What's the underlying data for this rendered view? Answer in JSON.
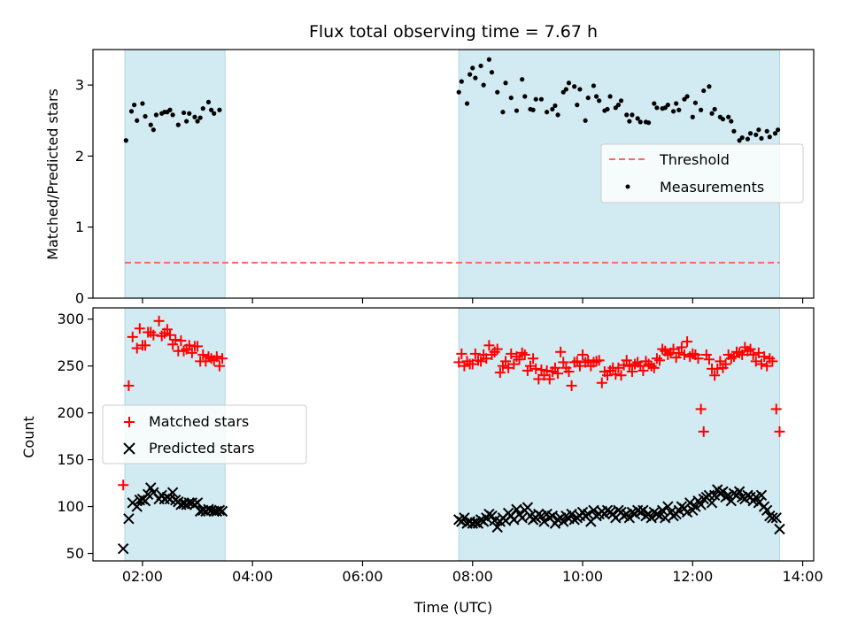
{
  "colors": {
    "band": "#add8e6",
    "matched": "#ff0000",
    "predicted": "#000000",
    "threshold": "#ff6666",
    "measurements": "#000000"
  },
  "chart_data": [
    {
      "type": "scatter",
      "title": "Flux total observing time = 7.67 h",
      "xlabel": "",
      "ylabel": "Matched/Predicted stars",
      "xlim": [
        1.1,
        14.2
      ],
      "ylim": [
        0,
        3.5
      ],
      "yticks": [
        0,
        1,
        2,
        3
      ],
      "ytick_labels": [
        "0",
        "1",
        "2",
        "3"
      ],
      "shaded_intervals": [
        [
          1.68,
          3.5
        ],
        [
          7.75,
          13.58
        ]
      ],
      "legend": {
        "placement": "right",
        "entries": [
          "Threshold",
          "Measurements"
        ]
      },
      "series": [
        {
          "name": "Threshold",
          "kind": "dashed-line",
          "x": [
            1.68,
            13.58
          ],
          "y": [
            0.5,
            0.5
          ]
        },
        {
          "name": "Measurements",
          "kind": "points",
          "x": [
            1.7,
            1.8,
            1.85,
            1.9,
            2.0,
            2.05,
            2.15,
            2.2,
            2.25,
            2.35,
            2.4,
            2.45,
            2.5,
            2.55,
            2.65,
            2.75,
            2.8,
            2.85,
            2.95,
            3.0,
            3.05,
            3.1,
            3.2,
            3.25,
            3.3,
            3.4,
            7.75,
            7.8,
            7.9,
            7.95,
            8.0,
            8.05,
            8.15,
            8.2,
            8.3,
            8.35,
            8.45,
            8.55,
            8.6,
            8.7,
            8.8,
            8.9,
            8.95,
            9.05,
            9.1,
            9.15,
            9.25,
            9.35,
            9.45,
            9.5,
            9.55,
            9.65,
            9.7,
            9.75,
            9.85,
            9.9,
            9.95,
            10.05,
            10.1,
            10.2,
            10.25,
            10.3,
            10.4,
            10.45,
            10.5,
            10.6,
            10.65,
            10.7,
            10.8,
            10.85,
            10.9,
            11.0,
            11.05,
            11.15,
            11.2,
            11.3,
            11.35,
            11.45,
            11.5,
            11.55,
            11.65,
            11.7,
            11.75,
            11.85,
            11.9,
            12.0,
            12.05,
            12.15,
            12.2,
            12.3,
            12.35,
            12.4,
            12.5,
            12.55,
            12.65,
            12.7,
            12.75,
            12.85,
            12.9,
            13.0,
            13.05,
            13.15,
            13.2,
            13.25,
            13.35,
            13.4,
            13.5,
            13.55
          ],
          "y": [
            2.22,
            2.63,
            2.72,
            2.5,
            2.74,
            2.56,
            2.44,
            2.37,
            2.58,
            2.6,
            2.62,
            2.62,
            2.65,
            2.58,
            2.44,
            2.61,
            2.49,
            2.6,
            2.55,
            2.49,
            2.54,
            2.67,
            2.76,
            2.65,
            2.6,
            2.65,
            2.9,
            3.05,
            2.74,
            3.15,
            3.24,
            3.1,
            3.27,
            3.0,
            3.36,
            3.18,
            2.9,
            2.62,
            3.03,
            2.82,
            2.64,
            3.08,
            2.84,
            2.66,
            2.65,
            2.8,
            2.8,
            2.62,
            2.66,
            2.71,
            2.58,
            2.9,
            2.94,
            3.03,
            2.98,
            2.72,
            2.94,
            2.5,
            2.82,
            2.99,
            2.84,
            2.78,
            2.64,
            2.66,
            2.84,
            2.68,
            2.72,
            2.78,
            2.58,
            2.49,
            2.58,
            2.53,
            2.48,
            2.48,
            2.47,
            2.74,
            2.68,
            2.67,
            2.68,
            2.72,
            2.63,
            2.74,
            2.65,
            2.8,
            2.84,
            2.55,
            2.75,
            2.65,
            2.92,
            2.98,
            2.6,
            2.66,
            2.55,
            2.52,
            2.55,
            2.49,
            2.35,
            2.22,
            2.26,
            2.24,
            2.32,
            2.3,
            2.37,
            2.25,
            2.35,
            2.27,
            2.32,
            2.37
          ]
        }
      ]
    },
    {
      "type": "scatter",
      "title": "",
      "xlabel": "Time (UTC)",
      "ylabel": "Count",
      "xlim": [
        1.1,
        14.2
      ],
      "ylim": [
        42,
        312
      ],
      "yticks": [
        50,
        100,
        150,
        200,
        250,
        300
      ],
      "ytick_labels": [
        "50",
        "100",
        "150",
        "200",
        "250",
        "300"
      ],
      "xticks": [
        2,
        4,
        6,
        8,
        10,
        12,
        14
      ],
      "xtick_labels": [
        "02:00",
        "04:00",
        "06:00",
        "08:00",
        "10:00",
        "12:00",
        "14:00"
      ],
      "shaded_intervals": [
        [
          1.68,
          3.5
        ],
        [
          7.75,
          13.58
        ]
      ],
      "legend": {
        "placement": "left",
        "entries": [
          "Matched stars",
          "Predicted stars"
        ]
      },
      "series": [
        {
          "name": "Matched stars",
          "marker": "+",
          "x": [
            1.65,
            1.75,
            1.82,
            1.9,
            1.95,
            2.0,
            2.05,
            2.1,
            2.15,
            2.2,
            2.3,
            2.35,
            2.4,
            2.45,
            2.5,
            2.55,
            2.6,
            2.65,
            2.7,
            2.75,
            2.8,
            2.85,
            2.9,
            2.95,
            3.0,
            3.05,
            3.1,
            3.15,
            3.2,
            3.25,
            3.3,
            3.35,
            3.4,
            3.45,
            7.75,
            7.8,
            7.85,
            7.9,
            7.95,
            8.0,
            8.05,
            8.1,
            8.15,
            8.2,
            8.25,
            8.3,
            8.35,
            8.4,
            8.45,
            8.5,
            8.55,
            8.6,
            8.65,
            8.7,
            8.75,
            8.8,
            8.85,
            8.9,
            8.95,
            9.0,
            9.05,
            9.1,
            9.15,
            9.2,
            9.25,
            9.3,
            9.35,
            9.4,
            9.45,
            9.5,
            9.55,
            9.6,
            9.65,
            9.7,
            9.75,
            9.8,
            9.85,
            9.9,
            9.95,
            10.0,
            10.05,
            10.1,
            10.15,
            10.2,
            10.25,
            10.3,
            10.35,
            10.4,
            10.45,
            10.5,
            10.55,
            10.6,
            10.65,
            10.7,
            10.75,
            10.8,
            10.85,
            10.9,
            10.95,
            11.0,
            11.05,
            11.1,
            11.15,
            11.2,
            11.25,
            11.3,
            11.35,
            11.4,
            11.45,
            11.5,
            11.55,
            11.6,
            11.65,
            11.7,
            11.75,
            11.8,
            11.85,
            11.9,
            11.95,
            12.0,
            12.05,
            12.1,
            12.15,
            12.2,
            12.25,
            12.3,
            12.35,
            12.4,
            12.45,
            12.5,
            12.55,
            12.6,
            12.65,
            12.7,
            12.75,
            12.8,
            12.85,
            12.9,
            12.95,
            13.0,
            13.05,
            13.1,
            13.15,
            13.2,
            13.25,
            13.3,
            13.35,
            13.4,
            13.45,
            13.52,
            13.58
          ],
          "y": [
            123,
            229,
            281,
            269,
            290,
            272,
            272,
            286,
            286,
            283,
            298,
            282,
            285,
            289,
            283,
            273,
            278,
            266,
            277,
            266,
            268,
            272,
            264,
            271,
            271,
            255,
            262,
            255,
            260,
            258,
            256,
            260,
            250,
            258,
            254,
            263,
            250,
            255,
            252,
            252,
            263,
            256,
            255,
            262,
            258,
            272,
            262,
            265,
            268,
            243,
            250,
            255,
            248,
            263,
            252,
            260,
            257,
            264,
            262,
            245,
            250,
            258,
            247,
            236,
            246,
            240,
            245,
            236,
            244,
            248,
            242,
            265,
            254,
            248,
            244,
            229,
            254,
            255,
            250,
            262,
            254,
            256,
            250,
            254,
            255,
            256,
            232,
            244,
            240,
            245,
            248,
            241,
            248,
            240,
            251,
            256,
            250,
            244,
            252,
            254,
            250,
            245,
            255,
            252,
            250,
            248,
            258,
            256,
            268,
            266,
            262,
            264,
            268,
            259,
            264,
            270,
            262,
            276,
            260,
            263,
            262,
            258,
            204,
            180,
            262,
            257,
            247,
            240,
            247,
            255,
            248,
            252,
            262,
            258,
            260,
            265,
            264,
            262,
            270,
            266,
            268,
            262,
            255,
            264,
            252,
            260,
            250,
            258,
            255,
            204,
            180
          ]
        },
        {
          "name": "Predicted stars",
          "marker": "x",
          "x": [
            1.65,
            1.75,
            1.82,
            1.9,
            1.95,
            2.0,
            2.05,
            2.1,
            2.15,
            2.2,
            2.3,
            2.35,
            2.4,
            2.45,
            2.5,
            2.55,
            2.6,
            2.65,
            2.7,
            2.75,
            2.8,
            2.85,
            2.9,
            2.95,
            3.0,
            3.05,
            3.1,
            3.15,
            3.2,
            3.25,
            3.3,
            3.35,
            3.4,
            3.45,
            7.75,
            7.8,
            7.85,
            7.9,
            7.95,
            8.0,
            8.05,
            8.1,
            8.15,
            8.2,
            8.25,
            8.3,
            8.35,
            8.4,
            8.45,
            8.5,
            8.55,
            8.6,
            8.65,
            8.7,
            8.75,
            8.8,
            8.85,
            8.9,
            8.95,
            9.0,
            9.05,
            9.1,
            9.15,
            9.2,
            9.25,
            9.3,
            9.35,
            9.4,
            9.45,
            9.5,
            9.55,
            9.6,
            9.65,
            9.7,
            9.75,
            9.8,
            9.85,
            9.9,
            9.95,
            10.0,
            10.05,
            10.1,
            10.15,
            10.2,
            10.25,
            10.3,
            10.35,
            10.4,
            10.45,
            10.5,
            10.55,
            10.6,
            10.65,
            10.7,
            10.75,
            10.8,
            10.85,
            10.9,
            10.95,
            11.0,
            11.05,
            11.1,
            11.15,
            11.2,
            11.25,
            11.3,
            11.35,
            11.4,
            11.45,
            11.5,
            11.55,
            11.6,
            11.65,
            11.7,
            11.75,
            11.8,
            11.85,
            11.9,
            11.95,
            12.0,
            12.05,
            12.1,
            12.15,
            12.2,
            12.25,
            12.3,
            12.35,
            12.4,
            12.45,
            12.5,
            12.55,
            12.6,
            12.65,
            12.7,
            12.75,
            12.8,
            12.85,
            12.9,
            12.95,
            13.0,
            13.05,
            13.1,
            13.15,
            13.2,
            13.25,
            13.3,
            13.35,
            13.4,
            13.45,
            13.52,
            13.58
          ],
          "y": [
            55,
            87,
            104,
            100,
            107,
            108,
            106,
            113,
            120,
            115,
            108,
            112,
            108,
            110,
            108,
            115,
            107,
            105,
            102,
            103,
            102,
            104,
            104,
            102,
            104,
            95,
            96,
            95,
            97,
            96,
            95,
            95,
            96,
            95,
            86,
            84,
            88,
            82,
            84,
            82,
            83,
            82,
            86,
            84,
            88,
            92,
            90,
            85,
            78,
            84,
            88,
            85,
            93,
            90,
            86,
            97,
            92,
            88,
            96,
            99,
            90,
            86,
            88,
            92,
            90,
            84,
            92,
            88,
            90,
            82,
            86,
            88,
            84,
            90,
            87,
            92,
            86,
            88,
            90,
            94,
            90,
            92,
            84,
            96,
            90,
            92,
            95,
            92,
            96,
            94,
            92,
            88,
            96,
            94,
            90,
            92,
            88,
            94,
            92,
            96,
            94,
            96,
            90,
            92,
            88,
            94,
            92,
            90,
            96,
            88,
            100,
            94,
            90,
            92,
            96,
            100,
            98,
            94,
            104,
            96,
            100,
            106,
            102,
            108,
            110,
            112,
            104,
            112,
            118,
            114,
            116,
            110,
            112,
            106,
            114,
            112,
            116,
            110,
            108,
            112,
            110,
            106,
            110,
            104,
            112,
            100,
            96,
            90,
            88,
            88,
            76
          ]
        }
      ]
    }
  ]
}
